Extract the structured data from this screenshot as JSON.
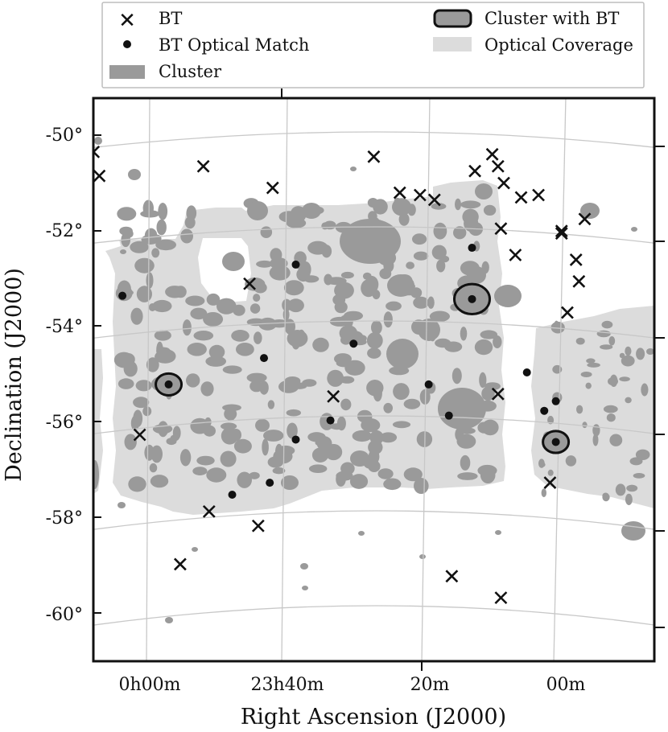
{
  "chart_data": {
    "type": "scatter",
    "xlabel": "Right Ascension (J2000)",
    "ylabel": "Declination (J2000)",
    "x_ticks": [
      "0h00m",
      "23h40m",
      "20m",
      "00m"
    ],
    "y_ticks": [
      "-50°",
      "-52°",
      "-54°",
      "-56°",
      "-58°",
      "-60°"
    ],
    "xlim_ra_deg": [
      2.75,
      -7.75
    ],
    "ylim_dec_deg": [
      -61.0,
      -49.6
    ],
    "legend": {
      "placement": "top",
      "entries": [
        {
          "key": "bt",
          "label": "BT",
          "marker": "x"
        },
        {
          "key": "bt_optical",
          "label": "BT Optical Match",
          "marker": "dot"
        },
        {
          "key": "cluster",
          "label": "Cluster",
          "marker": "filled-ellipse"
        },
        {
          "key": "cluster_bt",
          "label": "Cluster with BT",
          "marker": "ringed-ellipse"
        },
        {
          "key": "optical",
          "label": "Optical Coverage",
          "marker": "light-patch"
        }
      ]
    },
    "colors": {
      "optical_coverage": "#dcdcdc",
      "cluster": "#9a9a9a",
      "bt": "#111111",
      "frame": "#111111",
      "grid": "#c8c8c8"
    },
    "bt_positions": [
      [
        1.0,
        -50.35
      ],
      [
        0.9,
        -50.85
      ],
      [
        -0.9,
        -50.65
      ],
      [
        -2.1,
        -51.1
      ],
      [
        -3.85,
        -50.45
      ],
      [
        -4.3,
        -51.2
      ],
      [
        -4.65,
        -51.25
      ],
      [
        -4.9,
        -51.35
      ],
      [
        -5.6,
        -50.75
      ],
      [
        -5.9,
        -50.4
      ],
      [
        -6.0,
        -50.65
      ],
      [
        -6.1,
        -51.0
      ],
      [
        -6.4,
        -51.3
      ],
      [
        -6.7,
        -51.25
      ],
      [
        -7.1,
        -52.0
      ],
      [
        -7.5,
        -51.75
      ],
      [
        -6.05,
        -51.95
      ],
      [
        -6.3,
        -52.5
      ],
      [
        -7.1,
        -52.05
      ],
      [
        -7.35,
        -52.6
      ],
      [
        -7.4,
        -53.05
      ],
      [
        -7.2,
        -53.7
      ],
      [
        -1.7,
        -53.1
      ],
      [
        -3.15,
        -55.45
      ],
      [
        -6.0,
        -55.4
      ],
      [
        0.2,
        -56.25
      ],
      [
        -1.0,
        -57.85
      ],
      [
        -0.5,
        -58.95
      ],
      [
        -1.85,
        -58.15
      ],
      [
        -6.9,
        -57.25
      ],
      [
        -5.2,
        -59.2
      ],
      [
        -6.05,
        -59.65
      ]
    ],
    "bt_optical_matches": [
      [
        -5.55,
        -52.35
      ],
      [
        -5.55,
        -53.42
      ],
      [
        -3.5,
        -54.35
      ],
      [
        -1.95,
        -54.65
      ],
      [
        -2.5,
        -52.7
      ],
      [
        0.5,
        -53.35
      ],
      [
        -0.3,
        -55.2
      ],
      [
        -4.8,
        -55.2
      ],
      [
        -6.5,
        -54.95
      ],
      [
        -6.8,
        -55.75
      ],
      [
        -7.0,
        -55.55
      ],
      [
        -5.15,
        -55.85
      ],
      [
        -3.1,
        -55.95
      ],
      [
        -2.5,
        -56.35
      ],
      [
        -2.05,
        -57.25
      ],
      [
        -1.4,
        -57.5
      ],
      [
        -7.0,
        -56.4
      ]
    ],
    "clusters_with_bt": [
      [
        -5.55,
        -53.42
      ],
      [
        -0.3,
        -55.2
      ],
      [
        -7.0,
        -56.4
      ]
    ]
  }
}
